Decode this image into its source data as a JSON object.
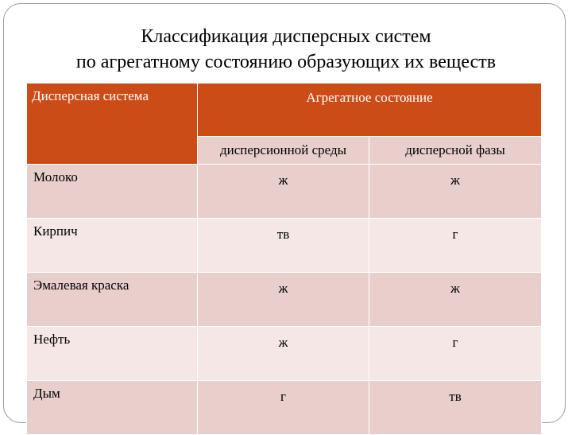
{
  "title": {
    "line1": "Классификация дисперсных систем",
    "line2": "по агрегатному состоянию образующих их веществ"
  },
  "table": {
    "header": {
      "col_system": "Дисперсная система",
      "col_state": "Агрегатное состояние",
      "sub_medium": "дисперсионной среды",
      "sub_phase": "дисперсной фазы"
    },
    "rows": [
      {
        "system": "Молоко",
        "medium": "ж",
        "phase": "ж"
      },
      {
        "system": "Кирпич",
        "medium": "тв",
        "phase": "г"
      },
      {
        "system": "Эмалевая краска",
        "medium": "ж",
        "phase": "ж"
      },
      {
        "system": "Нефть",
        "medium": "ж",
        "phase": "г"
      },
      {
        "system": "Дым",
        "medium": "г",
        "phase": "тв"
      }
    ]
  },
  "colors": {
    "header_bg": "#cc4c18",
    "row_dark": "#e9cfcc",
    "row_light": "#f4e7e6"
  }
}
